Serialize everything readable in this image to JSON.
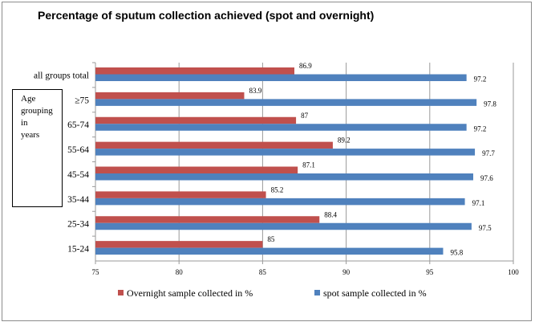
{
  "chart_data": {
    "type": "bar",
    "orientation": "horizontal",
    "title": "Percentage of sputum collection achieved (spot and overnight)",
    "ylabel_box": [
      "Age",
      "grouping",
      "in",
      "years"
    ],
    "categories": [
      "all groups total",
      "≥75",
      "65-74",
      "55-64",
      "45-54",
      "35-44",
      "25-34",
      "15-24"
    ],
    "series": [
      {
        "name": "Overnight sample collected in %",
        "color": "#c0504d",
        "values": [
          86.9,
          83.9,
          87,
          89.2,
          87.1,
          85.2,
          88.4,
          85
        ]
      },
      {
        "name": "spot sample collected in %",
        "color": "#4f81bd",
        "values": [
          97.2,
          97.8,
          97.2,
          97.7,
          97.6,
          97.1,
          97.5,
          95.8
        ]
      }
    ],
    "xlim": [
      75,
      100
    ],
    "xticks": [
      "75",
      "80",
      "85",
      "90",
      "95",
      "100"
    ],
    "grid": true,
    "legend_position": "bottom"
  }
}
